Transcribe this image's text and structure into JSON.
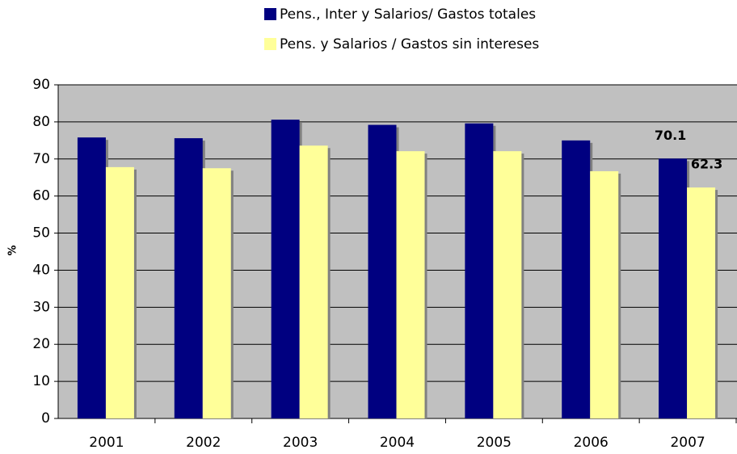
{
  "chart_data": {
    "type": "bar",
    "y_label": "%",
    "categories": [
      "2001",
      "2002",
      "2003",
      "2004",
      "2005",
      "2006",
      "2007"
    ],
    "series": [
      {
        "name": "Pens., Inter y Salarios/ Gastos totales",
        "color": "#000080",
        "values": [
          75.8,
          75.6,
          80.6,
          79.2,
          79.6,
          75.0,
          70.1
        ],
        "value_labels": [
          null,
          null,
          null,
          null,
          null,
          null,
          "70.1"
        ]
      },
      {
        "name": "Pens. y Salarios / Gastos sin intereses",
        "color": "#ffff99",
        "values": [
          67.8,
          67.5,
          73.6,
          72.1,
          72.1,
          66.7,
          62.3
        ],
        "value_labels": [
          null,
          null,
          null,
          null,
          null,
          null,
          "62.3"
        ]
      }
    ],
    "ylim": [
      0,
      90
    ],
    "yticks": [
      0,
      10,
      20,
      30,
      40,
      50,
      60,
      70,
      80,
      90
    ],
    "grid": true,
    "plot_background": "#c0c0c0"
  }
}
